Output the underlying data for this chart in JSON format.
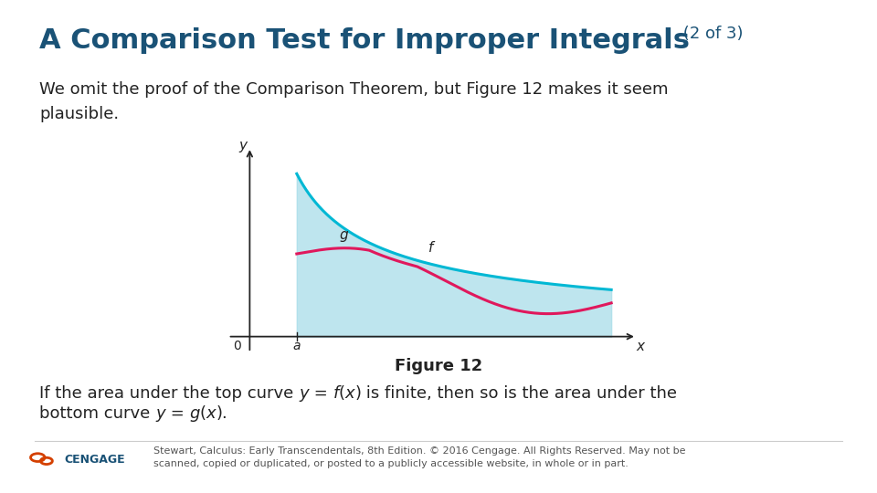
{
  "title_main": "A Comparison Test for Improper Integrals",
  "title_suffix": " (2 of 3)",
  "title_color": "#1a5276",
  "title_fontsize": 22,
  "body_text1": "We omit the proof of the Comparison Theorem, but Figure 12 makes it seem\nplausible.",
  "figure_caption": "Figure 12",
  "footer_text": "Stewart, Calculus: Early Transcendentals, 8th Edition. © 2016 Cengage. All Rights Reserved. May not be\nscanned, copied or duplicated, or posted to a publicly accessible website, in whole or in part.",
  "bg_color": "#ffffff",
  "curve_f_color": "#00b8d4",
  "curve_g_color": "#e0185c",
  "fill_color": "#a8dde9",
  "fill_alpha": 0.75,
  "body_fontsize": 13,
  "caption_fontsize": 13,
  "footer_fontsize": 8,
  "cengage_color": "#1a5276",
  "axis_color": "#222222",
  "text_color": "#222222"
}
